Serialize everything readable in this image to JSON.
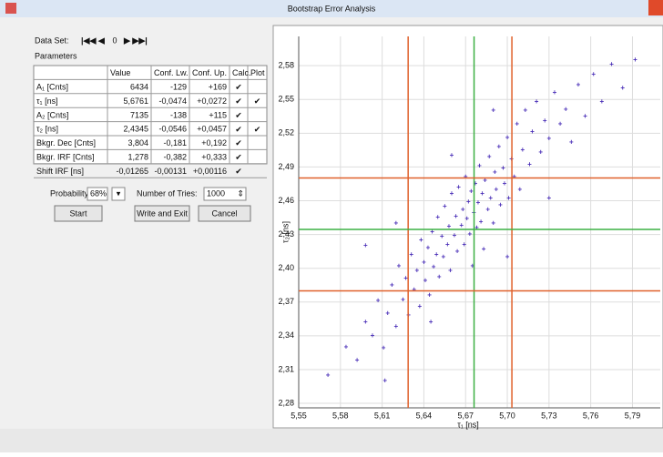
{
  "window": {
    "title": "Bootstrap Error Analysis"
  },
  "data_set": {
    "label": "Data Set:",
    "value": "0"
  },
  "parameters": {
    "label": "Parameters",
    "header": [
      null,
      "Value",
      "Conf. Lw.",
      "Conf. Up.",
      "Calc.",
      "Plot"
    ],
    "rows": [
      [
        "A₁ [Cnts]",
        "6434",
        "-129",
        "+169",
        "✔",
        null
      ],
      [
        "τ₁ [ns]",
        "5,6761",
        "-0,0474",
        "+0,0272",
        "✔",
        "✔"
      ],
      [
        "A₂ [Cnts]",
        "7135",
        "-138",
        "+115",
        "✔",
        null
      ],
      [
        "τ₂ [ns]",
        "2,4345",
        "-0,0546",
        "+0,0457",
        "✔",
        "✔"
      ],
      [
        "Bkgr. Dec [Cnts]",
        "3,804",
        "-0,181",
        "+0,192",
        "✔",
        null
      ],
      [
        "Bkgr. IRF [Cnts]",
        "1,278",
        "-0,382",
        "+0,333",
        "✔",
        null
      ],
      [
        "Shift IRF [ns]",
        "-0,01265",
        "-0,00131",
        "+0,00116",
        "✔",
        null
      ]
    ]
  },
  "controls": {
    "probability_label": "Probability:",
    "probability": "68%",
    "tries_label": "Number of Tries:",
    "tries": "1000",
    "buttons": [
      "Start",
      "Write and Exit",
      "Cancel"
    ]
  },
  "chart_data": {
    "type": "scatter",
    "color": "#4a2fb8",
    "xlabel": "τ₁ [ns]",
    "ylabel": "τ₂ [ns]",
    "grid": true,
    "xlim": [
      5.55,
      5.81
    ],
    "ylim": [
      2.276,
      2.606
    ],
    "xticks": [
      {
        "value": 5.55,
        "label": "5,55"
      },
      {
        "value": 5.58,
        "label": "5,58"
      },
      {
        "value": 5.61,
        "label": "5,61"
      },
      {
        "value": 5.64,
        "label": "5,64"
      },
      {
        "value": 5.67,
        "label": "5,67"
      },
      {
        "value": 5.7,
        "label": "5,70"
      },
      {
        "value": 5.73,
        "label": "5,73"
      },
      {
        "value": 5.76,
        "label": "5,76"
      },
      {
        "value": 5.79,
        "label": "5,79"
      }
    ],
    "yticks": [
      {
        "value": 2.28,
        "label": "2,28"
      },
      {
        "value": 2.31,
        "label": "2,31"
      },
      {
        "value": 2.34,
        "label": "2,34"
      },
      {
        "value": 2.37,
        "label": "2,37"
      },
      {
        "value": 2.4,
        "label": "2,40"
      },
      {
        "value": 2.43,
        "label": "2,43"
      },
      {
        "value": 2.46,
        "label": "2,46"
      },
      {
        "value": 2.49,
        "label": "2,49"
      },
      {
        "value": 2.52,
        "label": "2,52"
      },
      {
        "value": 2.55,
        "label": "2,55"
      },
      {
        "value": 2.58,
        "label": "2,58"
      }
    ],
    "reference_lines": [
      {
        "axis": "x",
        "value": 5.6287,
        "color": "#e0602a"
      },
      {
        "axis": "x",
        "value": 5.6761,
        "color": "#3cb043"
      },
      {
        "axis": "x",
        "value": 5.7033,
        "color": "#e0602a"
      },
      {
        "axis": "y",
        "value": 2.3799,
        "color": "#e0602a"
      },
      {
        "axis": "y",
        "value": 2.4345,
        "color": "#3cb043"
      },
      {
        "axis": "y",
        "value": 2.4802,
        "color": "#e0602a"
      }
    ],
    "x": [
      5.571,
      5.584,
      5.592,
      5.598,
      5.603,
      5.607,
      5.611,
      5.614,
      5.617,
      5.62,
      5.622,
      5.625,
      5.627,
      5.629,
      5.631,
      5.633,
      5.635,
      5.637,
      5.638,
      5.64,
      5.641,
      5.643,
      5.644,
      5.646,
      5.647,
      5.649,
      5.65,
      5.651,
      5.653,
      5.654,
      5.655,
      5.657,
      5.658,
      5.659,
      5.66,
      5.662,
      5.663,
      5.664,
      5.665,
      5.667,
      5.668,
      5.669,
      5.67,
      5.671,
      5.672,
      5.673,
      5.674,
      5.675,
      5.676,
      5.677,
      5.678,
      5.679,
      5.68,
      5.681,
      5.682,
      5.683,
      5.684,
      5.686,
      5.687,
      5.688,
      5.69,
      5.691,
      5.692,
      5.694,
      5.695,
      5.697,
      5.698,
      5.7,
      5.701,
      5.703,
      5.705,
      5.707,
      5.709,
      5.711,
      5.713,
      5.716,
      5.718,
      5.721,
      5.724,
      5.727,
      5.73,
      5.734,
      5.738,
      5.742,
      5.746,
      5.751,
      5.756,
      5.762,
      5.768,
      5.775,
      5.783,
      5.792,
      5.598,
      5.612,
      5.645,
      5.7,
      5.73,
      5.66,
      5.69,
      5.62
    ],
    "y": [
      2.305,
      2.33,
      2.318,
      2.352,
      2.34,
      2.371,
      2.329,
      2.36,
      2.385,
      2.348,
      2.402,
      2.372,
      2.391,
      2.358,
      2.412,
      2.381,
      2.398,
      2.366,
      2.425,
      2.405,
      2.389,
      2.418,
      2.376,
      2.432,
      2.401,
      2.412,
      2.445,
      2.392,
      2.428,
      2.41,
      2.455,
      2.421,
      2.437,
      2.398,
      2.466,
      2.429,
      2.446,
      2.415,
      2.472,
      2.438,
      2.452,
      2.421,
      2.481,
      2.444,
      2.459,
      2.43,
      2.468,
      2.402,
      2.449,
      2.475,
      2.436,
      2.458,
      2.491,
      2.441,
      2.466,
      2.417,
      2.478,
      2.452,
      2.499,
      2.462,
      2.44,
      2.485,
      2.47,
      2.508,
      2.456,
      2.489,
      2.475,
      2.516,
      2.462,
      2.497,
      2.481,
      2.528,
      2.47,
      2.505,
      2.54,
      2.492,
      2.521,
      2.548,
      2.503,
      2.531,
      2.515,
      2.556,
      2.528,
      2.541,
      2.512,
      2.563,
      2.535,
      2.572,
      2.548,
      2.581,
      2.56,
      2.585,
      2.42,
      2.3,
      2.352,
      2.41,
      2.462,
      2.5,
      2.54,
      2.44
    ]
  }
}
